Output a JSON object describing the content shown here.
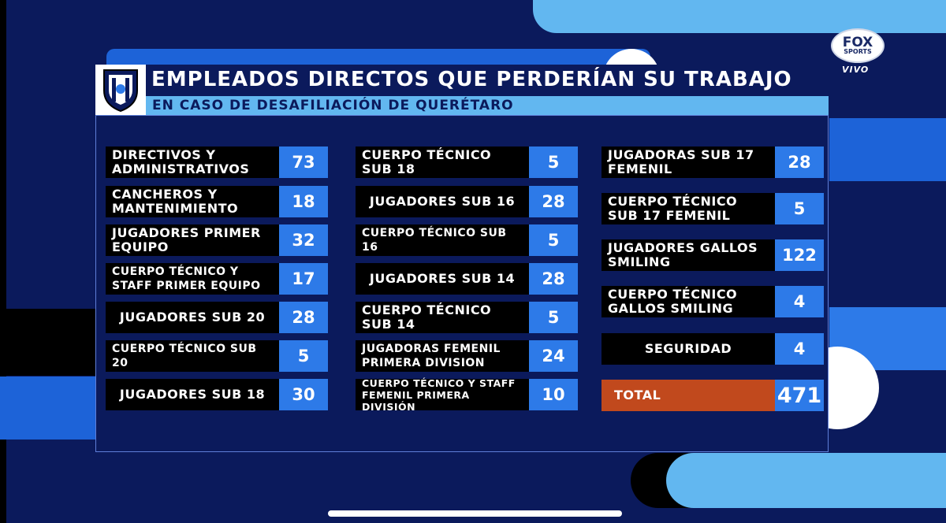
{
  "header": {
    "title": "EMPLEADOS DIRECTOS QUE PERDERÍAN SU TRABAJO",
    "subtitle": "EN CASO DE DESAFILIACIÓN DE QUERÉTARO"
  },
  "broadcaster": {
    "logo_line1": "FOX",
    "logo_line2": "SPORTS",
    "live_label": "VIVO"
  },
  "columns": [
    [
      {
        "label": "DIRECTIVOS Y ADMINISTRATIVOS",
        "value": "73"
      },
      {
        "label": "CANCHEROS Y MANTENIMIENTO",
        "value": "18"
      },
      {
        "label": "JUGADORES PRIMER EQUIPO",
        "value": "32"
      },
      {
        "label": "CUERPO TÉCNICO Y STAFF PRIMER EQUIPO",
        "value": "17"
      },
      {
        "label": "JUGADORES SUB 20",
        "value": "28"
      },
      {
        "label": "CUERPO TÉCNICO SUB 20",
        "value": "5"
      },
      {
        "label": "JUGADORES SUB 18",
        "value": "30"
      }
    ],
    [
      {
        "label": "CUERPO TÉCNICO SUB 18",
        "value": "5"
      },
      {
        "label": "JUGADORES SUB 16",
        "value": "28"
      },
      {
        "label": "CUERPO TÉCNICO SUB 16",
        "value": "5"
      },
      {
        "label": "JUGADORES SUB 14",
        "value": "28"
      },
      {
        "label": "CUERPO TÉCNICO SUB 14",
        "value": "5"
      },
      {
        "label": "JUGADORAS FEMENIL PRIMERA DIVISION",
        "value": "24"
      },
      {
        "label": "CUERPO TÉCNICO Y STAFF FEMENIL PRIMERA DIVISIÓN",
        "value": "10"
      }
    ],
    [
      {
        "label": "JUGADORAS SUB 17 FEMENIL",
        "value": "28"
      },
      {
        "label": "CUERPO TÉCNICO SUB 17 FEMENIL",
        "value": "5"
      },
      {
        "label": "JUGADORES GALLOS SMILING",
        "value": "122"
      },
      {
        "label": "CUERPO TÉCNICO GALLOS SMILING",
        "value": "4"
      },
      {
        "label": "SEGURIDAD",
        "value": "4"
      }
    ]
  ],
  "total": {
    "label": "TOTAL",
    "value": "471"
  },
  "colors": {
    "background": "#0b1a5c",
    "value_box": "#2d7ae8",
    "total_box": "#c1491d",
    "accent_light": "#62b7f0"
  }
}
